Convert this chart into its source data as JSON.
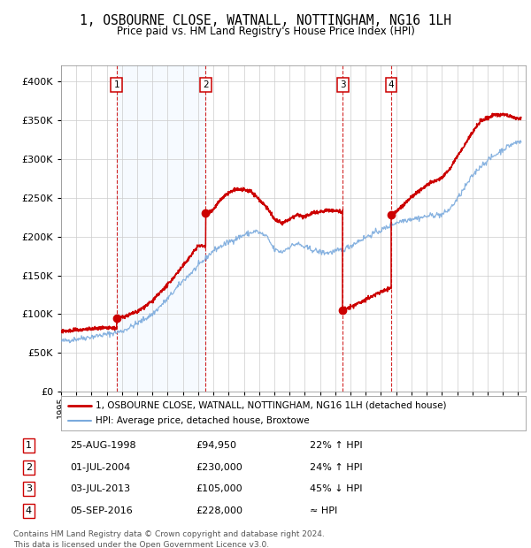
{
  "title": "1, OSBOURNE CLOSE, WATNALL, NOTTINGHAM, NG16 1LH",
  "subtitle": "Price paid vs. HM Land Registry's House Price Index (HPI)",
  "legend_line1": "1, OSBOURNE CLOSE, WATNALL, NOTTINGHAM, NG16 1LH (detached house)",
  "legend_line2": "HPI: Average price, detached house, Broxtowe",
  "footer": "Contains HM Land Registry data © Crown copyright and database right 2024.\nThis data is licensed under the Open Government Licence v3.0.",
  "row_info": [
    [
      1,
      "25-AUG-1998",
      "£94,950",
      "22% ↑ HPI"
    ],
    [
      2,
      "01-JUL-2004",
      "£230,000",
      "24% ↑ HPI"
    ],
    [
      3,
      "03-JUL-2013",
      "£105,000",
      "45% ↓ HPI"
    ],
    [
      4,
      "05-SEP-2016",
      "£228,000",
      "≈ HPI"
    ]
  ],
  "hpi_color": "#7aaadd",
  "price_color": "#cc0000",
  "background_color": "#ffffff",
  "shade_color": "#ddeeff",
  "grid_color": "#cccccc",
  "ylim": [
    0,
    420000
  ],
  "yticks": [
    0,
    50000,
    100000,
    150000,
    200000,
    250000,
    300000,
    350000,
    400000
  ],
  "xlim_start": 1995.0,
  "xlim_end": 2025.5,
  "trans_times": [
    1998.644,
    2004.496,
    2013.496,
    2016.676
  ],
  "trans_prices": [
    94950,
    230000,
    105000,
    228000
  ]
}
